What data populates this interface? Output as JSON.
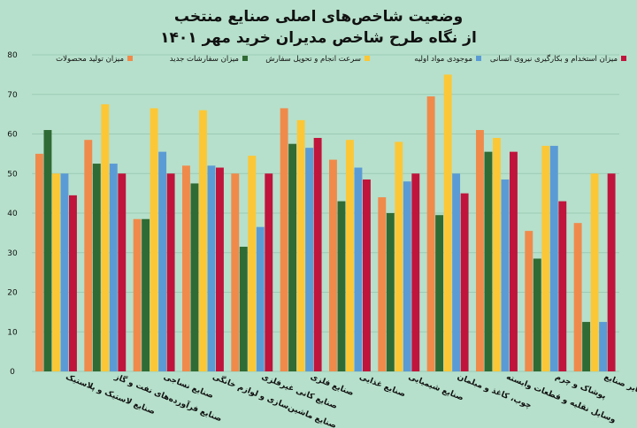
{
  "chart_data": {
    "type": "bar",
    "title_line1": "وضعیت شاخص‌های اصلی صنایع منتخب",
    "title_line2": "از نگاه طرح شاخص مدیران خرید مهر ۱۴۰۱",
    "xlabel": "",
    "ylabel": "",
    "ylim": [
      0,
      80
    ],
    "yticks": [
      "0",
      "10",
      "20",
      "30",
      "40",
      "50",
      "60",
      "70",
      "80"
    ],
    "grid": true,
    "legend_position": "top",
    "categories": [
      "صنایع لاستیک و پلاستیک",
      "صنایع فرآورده‌های نفت و گاز",
      "صنایع نساجی",
      "صنایع ماشین‌سازی و لوازم خانگی",
      "صنایع کانی غیرفلزی",
      "صنایع فلزی",
      "صنایع غذایی",
      "صنایع شیمیایی",
      "چوب، کاغذ و مبلمان",
      "وسایل نقلیه و قطعات وابسته",
      "پوشاک و چرم",
      "سایر صنایع"
    ],
    "series": [
      {
        "name": "میزان تولید محصولات",
        "color": "#f08a4b",
        "values": [
          55,
          58.5,
          38.5,
          52,
          50,
          66.5,
          53.5,
          44,
          69.5,
          61,
          35.5,
          37.5
        ]
      },
      {
        "name": "میزان سفارشات جدید",
        "color": "#2f6b34",
        "values": [
          61,
          52.5,
          38.5,
          47.5,
          31.5,
          57.5,
          43,
          40,
          39.5,
          55.5,
          28.5,
          12.5
        ]
      },
      {
        "name": "سرعت انجام و تحویل سفارش",
        "color": "#fcc736",
        "values": [
          50,
          67.5,
          66.5,
          66,
          54.5,
          63.5,
          58.5,
          58,
          75,
          59,
          57,
          50
        ]
      },
      {
        "name": "موجودی مواد اولیه",
        "color": "#5b9bd5",
        "values": [
          50,
          52.5,
          55.5,
          52,
          36.5,
          56.5,
          51.5,
          48,
          50,
          48.5,
          57,
          12.5
        ]
      },
      {
        "name": "میزان استخدام و بکارگیری نیروی انسانی",
        "color": "#c0143c",
        "values": [
          44.5,
          50,
          50,
          51.5,
          50,
          59,
          48.5,
          50,
          45,
          55.5,
          43,
          50
        ]
      }
    ]
  }
}
